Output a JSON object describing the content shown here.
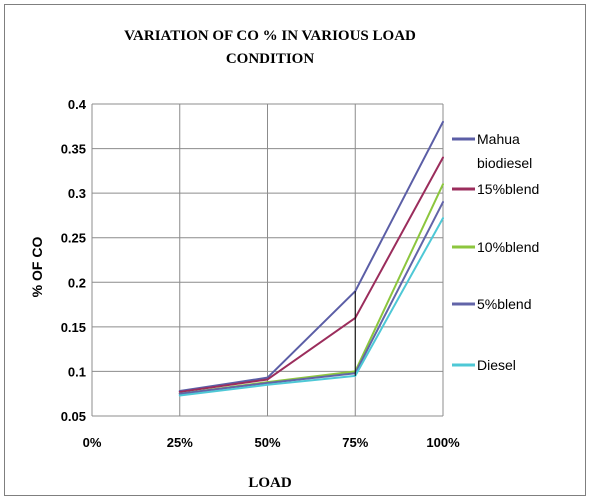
{
  "chart_data": {
    "type": "line",
    "title_lines": [
      "VARIATION OF CO % IN VARIOUS LOAD",
      "CONDITION"
    ],
    "xlabel": "LOAD",
    "ylabel": "% OF CO",
    "categories": [
      "0%",
      "25%",
      "50%",
      "75%",
      "100%"
    ],
    "y_ticks": [
      "0.05",
      "0.1",
      "0.15",
      "0.2",
      "0.25",
      "0.3",
      "0.35",
      "0.4"
    ],
    "ylim": [
      0.05,
      0.4
    ],
    "grid": true,
    "legend_position": "right",
    "series": [
      {
        "name_lines": [
          "Mahua",
          "biodiesel"
        ],
        "color": "#5b5ea6",
        "x": [
          "25%",
          "50%",
          "75%",
          "100%"
        ],
        "values": [
          0.078,
          0.093,
          0.19,
          0.38
        ]
      },
      {
        "name_lines": [
          "15%blend"
        ],
        "color": "#9b2d5c",
        "x": [
          "25%",
          "50%",
          "75%",
          "100%"
        ],
        "values": [
          0.077,
          0.091,
          0.16,
          0.34
        ]
      },
      {
        "name_lines": [
          "10%blend"
        ],
        "color": "#8cc63e",
        "x": [
          "25%",
          "50%",
          "75%",
          "100%"
        ],
        "values": [
          0.075,
          0.088,
          0.1,
          0.31
        ]
      },
      {
        "name_lines": [
          "5%blend"
        ],
        "color": "#6264a8",
        "x": [
          "25%",
          "50%",
          "75%",
          "100%"
        ],
        "values": [
          0.075,
          0.087,
          0.098,
          0.29
        ]
      },
      {
        "name_lines": [
          "Diesel"
        ],
        "color": "#4ec8d6",
        "x": [
          "25%",
          "50%",
          "75%",
          "100%"
        ],
        "values": [
          0.073,
          0.085,
          0.095,
          0.272
        ]
      }
    ]
  }
}
